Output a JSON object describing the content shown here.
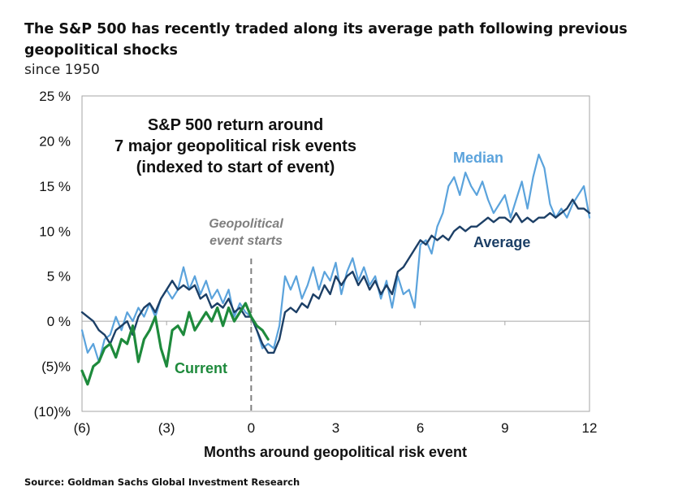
{
  "title": "The S&P 500 has recently traded along its average path following previous geopolitical shocks",
  "subtitle": "since 1950",
  "source": "Source: Goldman Sachs Global Investment Research",
  "chart_data": {
    "type": "line",
    "inner_title": [
      "S&P 500 return around",
      "7 major geopolitical risk events",
      "(indexed to start of event)"
    ],
    "xlabel": "Months around geopolitical risk event",
    "ylabel": "",
    "xlim": [
      -6,
      12
    ],
    "ylim": [
      -10,
      25
    ],
    "x_ticks": [
      -6,
      -3,
      0,
      3,
      6,
      9,
      12
    ],
    "x_tick_labels": [
      "(6)",
      "(3)",
      "0",
      "3",
      "6",
      "9",
      "12"
    ],
    "y_ticks": [
      25,
      20,
      15,
      10,
      5,
      0,
      -5,
      -10
    ],
    "y_tick_labels": [
      "25 %",
      "20 %",
      "15 %",
      "10 %",
      "5 %",
      "0 %",
      "(5)%",
      "(10)%"
    ],
    "annotation": [
      "Geopolitical",
      "event starts"
    ],
    "event_marker_x": 0,
    "grid": false,
    "series": [
      {
        "name": "Median",
        "color": "#5ba3dc",
        "x": [
          -6,
          -5.8,
          -5.6,
          -5.4,
          -5.2,
          -5.0,
          -4.8,
          -4.6,
          -4.4,
          -4.2,
          -4.0,
          -3.8,
          -3.6,
          -3.4,
          -3.2,
          -3.0,
          -2.8,
          -2.6,
          -2.4,
          -2.2,
          -2.0,
          -1.8,
          -1.6,
          -1.4,
          -1.2,
          -1.0,
          -0.8,
          -0.6,
          -0.4,
          -0.2,
          0.0,
          0.2,
          0.4,
          0.6,
          0.8,
          1.0,
          1.2,
          1.4,
          1.6,
          1.8,
          2.0,
          2.2,
          2.4,
          2.6,
          2.8,
          3.0,
          3.2,
          3.4,
          3.6,
          3.8,
          4.0,
          4.2,
          4.4,
          4.6,
          4.8,
          5.0,
          5.2,
          5.4,
          5.6,
          5.8,
          6.0,
          6.2,
          6.4,
          6.6,
          6.8,
          7.0,
          7.2,
          7.4,
          7.6,
          7.8,
          8.0,
          8.2,
          8.4,
          8.6,
          8.8,
          9.0,
          9.2,
          9.4,
          9.6,
          9.8,
          10.0,
          10.2,
          10.4,
          10.6,
          10.8,
          11.0,
          11.2,
          11.4,
          11.6,
          11.8,
          12.0
        ],
        "values": [
          -1.0,
          -3.5,
          -2.5,
          -4.5,
          -2.0,
          -1.5,
          0.5,
          -1.0,
          1.0,
          0.0,
          1.5,
          0.5,
          2.0,
          0.5,
          2.5,
          3.5,
          2.5,
          3.5,
          6.0,
          3.5,
          5.0,
          3.0,
          4.5,
          2.5,
          3.5,
          2.0,
          3.5,
          0.5,
          2.0,
          1.0,
          0.5,
          -1.0,
          -3.0,
          -2.5,
          -3.0,
          -0.5,
          5.0,
          3.5,
          5.0,
          2.5,
          4.0,
          6.0,
          3.5,
          5.5,
          4.5,
          6.5,
          3.0,
          5.5,
          7.0,
          4.5,
          6.0,
          4.0,
          5.0,
          2.5,
          4.5,
          1.5,
          5.0,
          3.0,
          3.5,
          1.5,
          8.5,
          9.0,
          7.5,
          10.5,
          12.0,
          15.0,
          16.0,
          14.0,
          16.5,
          15.0,
          14.0,
          15.5,
          13.5,
          12.0,
          13.0,
          14.0,
          11.5,
          13.5,
          15.5,
          12.5,
          16.0,
          18.5,
          17.0,
          13.0,
          11.5,
          12.5,
          11.5,
          13.0,
          14.0,
          15.0,
          11.5
        ]
      },
      {
        "name": "Average",
        "color": "#1c3f66",
        "x": [
          -6,
          -5.8,
          -5.6,
          -5.4,
          -5.2,
          -5.0,
          -4.8,
          -4.6,
          -4.4,
          -4.2,
          -4.0,
          -3.8,
          -3.6,
          -3.4,
          -3.2,
          -3.0,
          -2.8,
          -2.6,
          -2.4,
          -2.2,
          -2.0,
          -1.8,
          -1.6,
          -1.4,
          -1.2,
          -1.0,
          -0.8,
          -0.6,
          -0.4,
          -0.2,
          0.0,
          0.2,
          0.4,
          0.6,
          0.8,
          1.0,
          1.2,
          1.4,
          1.6,
          1.8,
          2.0,
          2.2,
          2.4,
          2.6,
          2.8,
          3.0,
          3.2,
          3.4,
          3.6,
          3.8,
          4.0,
          4.2,
          4.4,
          4.6,
          4.8,
          5.0,
          5.2,
          5.4,
          5.6,
          5.8,
          6.0,
          6.2,
          6.4,
          6.6,
          6.8,
          7.0,
          7.2,
          7.4,
          7.6,
          7.8,
          8.0,
          8.2,
          8.4,
          8.6,
          8.8,
          9.0,
          9.2,
          9.4,
          9.6,
          9.8,
          10.0,
          10.2,
          10.4,
          10.6,
          10.8,
          11.0,
          11.2,
          11.4,
          11.6,
          11.8,
          12.0
        ],
        "values": [
          1.0,
          0.5,
          0.0,
          -1.0,
          -1.5,
          -2.5,
          -1.0,
          -0.5,
          0.0,
          -1.5,
          0.5,
          1.5,
          2.0,
          1.0,
          2.5,
          3.5,
          4.5,
          3.5,
          4.0,
          3.5,
          4.0,
          2.5,
          3.0,
          1.5,
          2.0,
          1.5,
          2.5,
          1.0,
          1.5,
          0.5,
          0.5,
          -1.0,
          -2.5,
          -3.5,
          -3.5,
          -2.0,
          1.0,
          1.5,
          1.0,
          2.0,
          1.5,
          3.0,
          2.5,
          4.0,
          3.0,
          5.0,
          4.0,
          5.0,
          5.5,
          4.0,
          5.0,
          3.5,
          4.5,
          3.0,
          4.0,
          3.0,
          5.5,
          6.0,
          7.0,
          8.0,
          9.0,
          8.5,
          9.5,
          9.0,
          9.5,
          9.0,
          10.0,
          10.5,
          10.0,
          10.5,
          10.5,
          11.0,
          11.5,
          11.0,
          11.5,
          11.5,
          11.0,
          12.0,
          11.0,
          11.5,
          11.0,
          11.5,
          11.5,
          12.0,
          11.5,
          12.0,
          12.5,
          13.5,
          12.5,
          12.5,
          12.0
        ]
      },
      {
        "name": "Current",
        "color": "#1e8a3c",
        "x": [
          -6,
          -5.8,
          -5.6,
          -5.4,
          -5.2,
          -5.0,
          -4.8,
          -4.6,
          -4.4,
          -4.2,
          -4.0,
          -3.8,
          -3.6,
          -3.4,
          -3.2,
          -3.0,
          -2.8,
          -2.6,
          -2.4,
          -2.2,
          -2.0,
          -1.8,
          -1.6,
          -1.4,
          -1.2,
          -1.0,
          -0.8,
          -0.6,
          -0.4,
          -0.2,
          0.0,
          0.2,
          0.4,
          0.6
        ],
        "values": [
          -5.5,
          -7.0,
          -5.0,
          -4.5,
          -3.0,
          -2.5,
          -4.0,
          -2.0,
          -2.5,
          -0.5,
          -4.5,
          -2.0,
          -1.0,
          0.5,
          -3.0,
          -5.0,
          -1.0,
          -0.5,
          -1.5,
          1.0,
          -1.0,
          0.0,
          1.0,
          0.0,
          1.5,
          -0.5,
          1.5,
          0.0,
          1.0,
          2.0,
          0.5,
          -0.5,
          -1.0,
          -2.0
        ]
      }
    ],
    "legend": "inline labels (Median top-right, Average right, Current bottom-left)"
  }
}
